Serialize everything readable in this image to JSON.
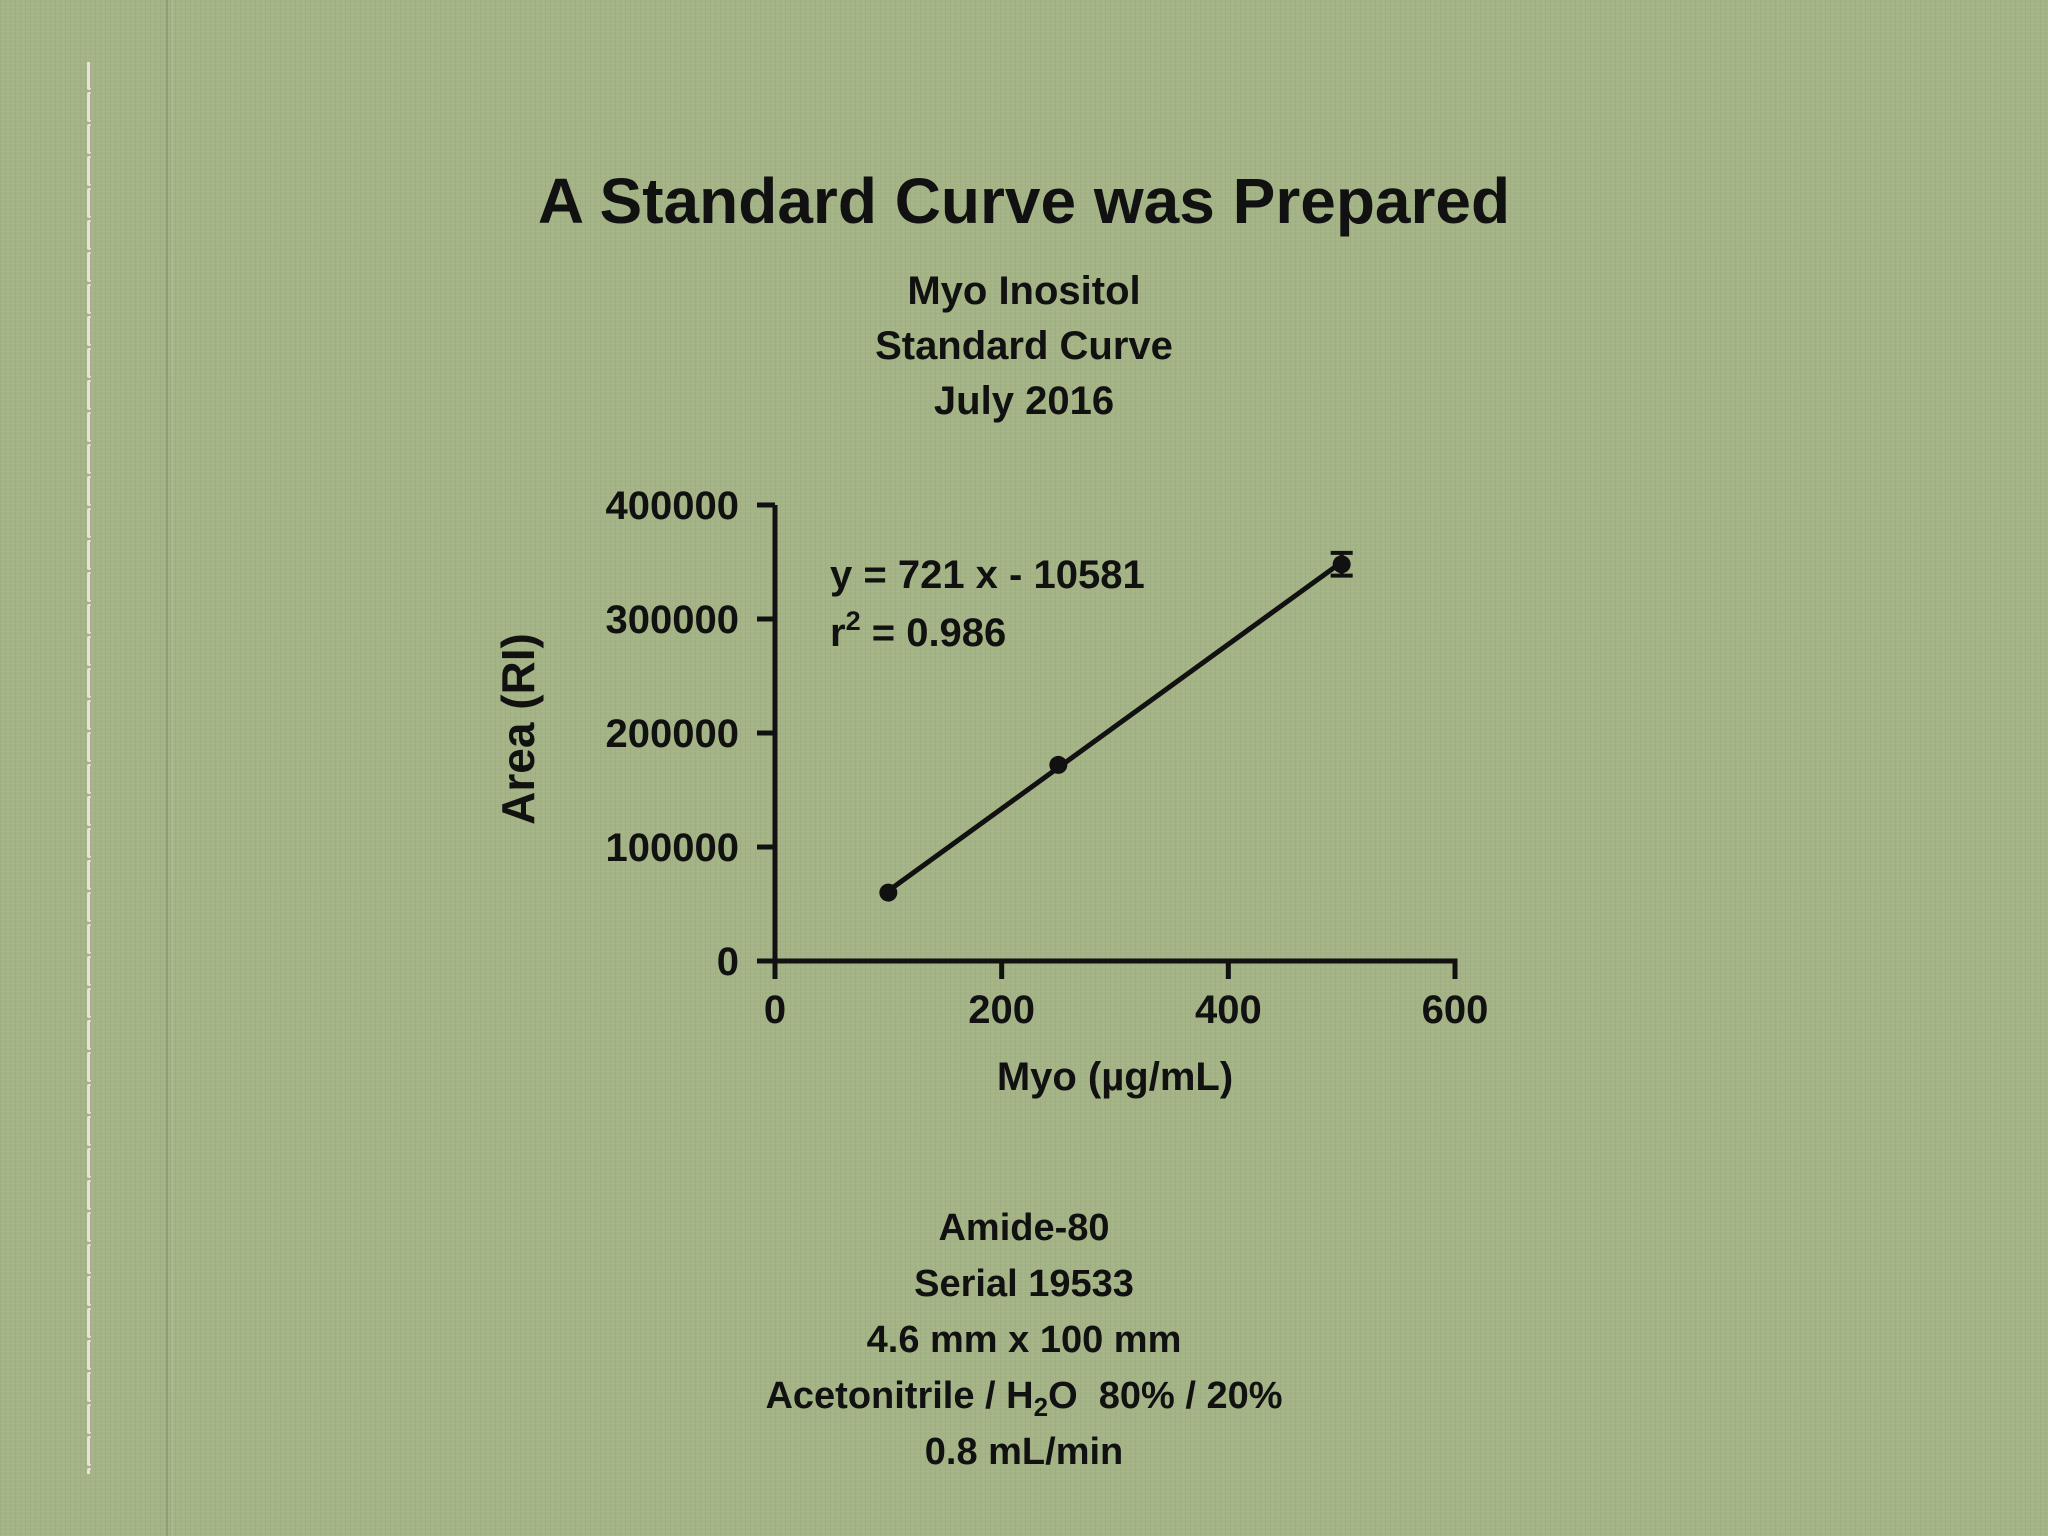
{
  "slide": {
    "title": "A Standard Curve was Prepared",
    "subtitle_lines": [
      "Myo Inositol",
      "Standard Curve",
      "July 2016"
    ],
    "column_info": {
      "line1": "Amide-80",
      "line2": "Serial 19533",
      "line3": "4.6 mm x 100 mm",
      "line4_before": "Acetonitrile / H",
      "line4_sub": "2",
      "line4_after": "O  80% / 20%",
      "line5": "0.8 mL/min"
    },
    "background_color": "#a4b486"
  },
  "chart_data": {
    "type": "scatter",
    "xlabel": "Myo (µg/mL)",
    "ylabel": "Area (RI)",
    "xlim": [
      0,
      600
    ],
    "ylim": [
      0,
      400000
    ],
    "x_ticks": [
      0,
      200,
      400,
      600
    ],
    "y_ticks": [
      0,
      100000,
      200000,
      300000,
      400000
    ],
    "x_tick_labels": [
      "0",
      "200",
      "400",
      "600"
    ],
    "y_tick_labels": [
      "0",
      "100000",
      "200000",
      "300000",
      "400000"
    ],
    "grid": false,
    "series": [
      {
        "x": [
          100,
          250,
          500
        ],
        "y": [
          60000,
          172000,
          348000
        ],
        "error": [
          0,
          0,
          10000
        ]
      }
    ],
    "fit": {
      "slope": 721,
      "intercept": -10581,
      "x_range": [
        100,
        500
      ],
      "equation_text": "y = 721 x - 10581",
      "r2_label": "r",
      "r2_sup": "2",
      "r2_value": " = 0.986"
    }
  }
}
